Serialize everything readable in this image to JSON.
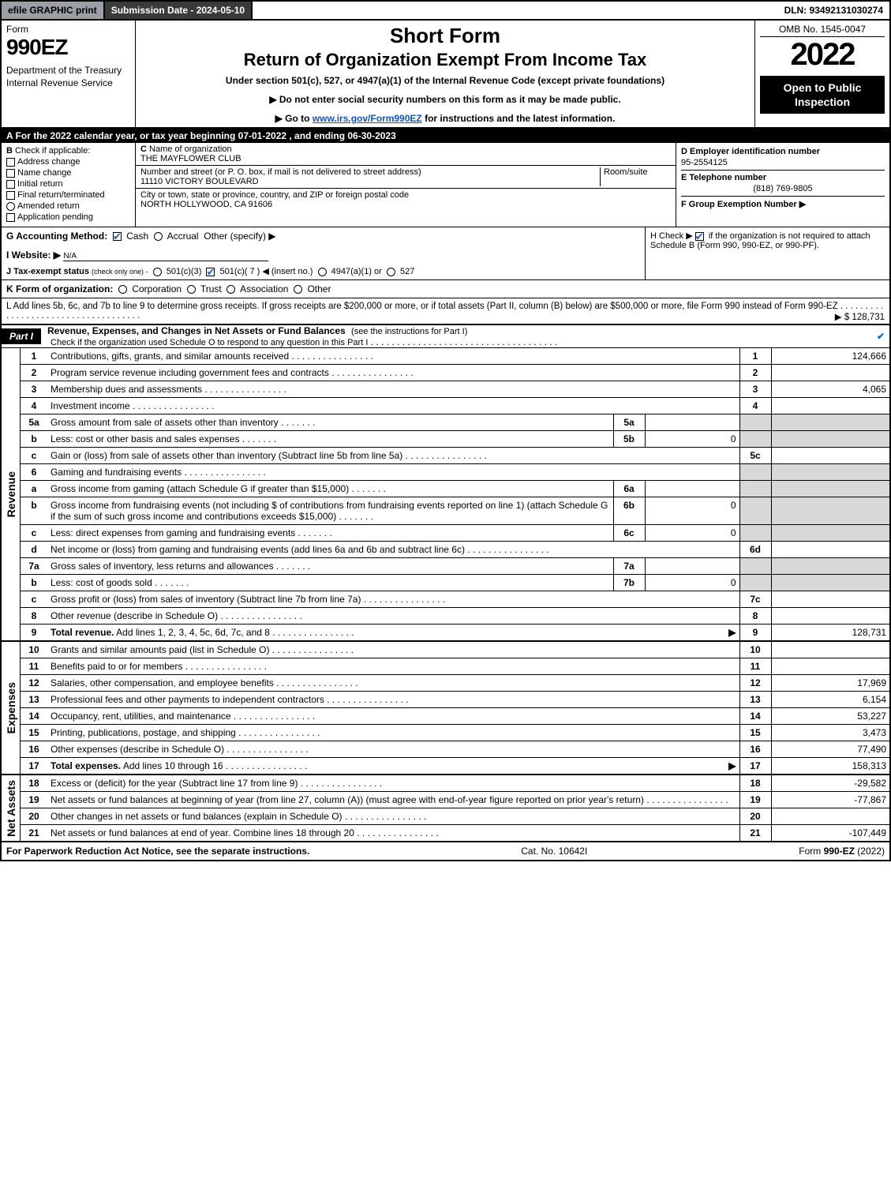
{
  "topbar": {
    "efile": "efile GRAPHIC print",
    "submission": "Submission Date - 2024-05-10",
    "dln": "DLN: 93492131030274"
  },
  "header": {
    "form_word": "Form",
    "form_num": "990EZ",
    "dept": "Department of the Treasury\nInternal Revenue Service",
    "short_form": "Short Form",
    "title": "Return of Organization Exempt From Income Tax",
    "under": "Under section 501(c), 527, or 4947(a)(1) of the Internal Revenue Code (except private foundations)",
    "note1": "▶ Do not enter social security numbers on this form as it may be made public.",
    "note2_pre": "▶ Go to ",
    "note2_link": "www.irs.gov/Form990EZ",
    "note2_post": " for instructions and the latest information.",
    "omb": "OMB No. 1545-0047",
    "year": "2022",
    "badge": "Open to Public Inspection"
  },
  "row_a": "A  For the 2022 calendar year, or tax year beginning 07-01-2022 , and ending 06-30-2023",
  "box_b": {
    "label": "B",
    "caption": "Check if applicable:",
    "addr": "Address change",
    "name": "Name change",
    "init": "Initial return",
    "final": "Final return/terminated",
    "amend": "Amended return",
    "app": "Application pending"
  },
  "box_c": {
    "c_lbl": "C",
    "org_lbl": "Name of organization",
    "org_val": "THE MAYFLOWER CLUB",
    "addr_lbl": "Number and street (or P. O. box, if mail is not delivered to street address)",
    "room_lbl": "Room/suite",
    "addr_val": "11110 VICTORY BOULEVARD",
    "city_lbl": "City or town, state or province, country, and ZIP or foreign postal code",
    "city_val": "NORTH HOLLYWOOD, CA  91606"
  },
  "box_d": {
    "d_lbl": "D Employer identification number",
    "d_val": "95-2554125",
    "e_lbl": "E Telephone number",
    "e_val": "(818) 769-9805",
    "f_lbl": "F Group Exemption Number  ▶"
  },
  "g": {
    "label": "G Accounting Method:",
    "cash": "Cash",
    "accrual": "Accrual",
    "other": "Other (specify) ▶"
  },
  "h": {
    "text_pre": "H  Check ▶ ",
    "text_post": " if the organization is not required to attach Schedule B (Form 990, 990-EZ, or 990-PF)."
  },
  "i": {
    "label": "I Website: ▶",
    "val": "N/A"
  },
  "j": {
    "label": "J Tax-exempt status",
    "small": "(check only one) -",
    "o1": "501(c)(3)",
    "o2": "501(c)( 7 ) ◀ (insert no.)",
    "o3": "4947(a)(1) or",
    "o4": "527"
  },
  "k": {
    "label": "K Form of organization:",
    "corp": "Corporation",
    "trust": "Trust",
    "assoc": "Association",
    "other": "Other"
  },
  "l": {
    "text": "L Add lines 5b, 6c, and 7b to line 9 to determine gross receipts. If gross receipts are $200,000 or more, or if total assets (Part II, column (B) below) are $500,000 or more, file Form 990 instead of Form 990-EZ",
    "val": "▶ $ 128,731"
  },
  "part1": {
    "tag": "Part I",
    "title": "Revenue, Expenses, and Changes in Net Assets or Fund Balances",
    "sub": "(see the instructions for Part I)",
    "subline": "Check if the organization used Schedule O to respond to any question in this Part I"
  },
  "revenue_label": "Revenue",
  "expenses_label": "Expenses",
  "netassets_label": "Net Assets",
  "rows_rev": [
    {
      "n": "1",
      "desc": "Contributions, gifts, grants, and similar amounts received",
      "rn": "1",
      "rv": "124,666"
    },
    {
      "n": "2",
      "desc": "Program service revenue including government fees and contracts",
      "rn": "2",
      "rv": ""
    },
    {
      "n": "3",
      "desc": "Membership dues and assessments",
      "rn": "3",
      "rv": "4,065"
    },
    {
      "n": "4",
      "desc": "Investment income",
      "rn": "4",
      "rv": ""
    },
    {
      "n": "5a",
      "desc": "Gross amount from sale of assets other than inventory",
      "sl": "5a",
      "sv": "",
      "shade": true
    },
    {
      "n": "b",
      "desc": "Less: cost or other basis and sales expenses",
      "sl": "5b",
      "sv": "0",
      "shade": true
    },
    {
      "n": "c",
      "desc": "Gain or (loss) from sale of assets other than inventory (Subtract line 5b from line 5a)",
      "rn": "5c",
      "rv": ""
    },
    {
      "n": "6",
      "desc": "Gaming and fundraising events",
      "shade": true
    },
    {
      "n": "a",
      "desc": "Gross income from gaming (attach Schedule G if greater than $15,000)",
      "sl": "6a",
      "sv": "",
      "shade": true
    },
    {
      "n": "b",
      "desc": "Gross income from fundraising events (not including $                      of contributions from fundraising events reported on line 1) (attach Schedule G if the sum of such gross income and contributions exceeds $15,000)",
      "sl": "6b",
      "sv": "0",
      "shade": true
    },
    {
      "n": "c",
      "desc": "Less: direct expenses from gaming and fundraising events",
      "sl": "6c",
      "sv": "0",
      "shade": true
    },
    {
      "n": "d",
      "desc": "Net income or (loss) from gaming and fundraising events (add lines 6a and 6b and subtract line 6c)",
      "rn": "6d",
      "rv": ""
    },
    {
      "n": "7a",
      "desc": "Gross sales of inventory, less returns and allowances",
      "sl": "7a",
      "sv": "",
      "shade": true
    },
    {
      "n": "b",
      "desc": "Less: cost of goods sold",
      "sl": "7b",
      "sv": "0",
      "shade": true
    },
    {
      "n": "c",
      "desc": "Gross profit or (loss) from sales of inventory (Subtract line 7b from line 7a)",
      "rn": "7c",
      "rv": ""
    },
    {
      "n": "8",
      "desc": "Other revenue (describe in Schedule O)",
      "rn": "8",
      "rv": ""
    },
    {
      "n": "9",
      "desc_bold": "Total revenue.",
      "desc": " Add lines 1, 2, 3, 4, 5c, 6d, 7c, and 8",
      "arrow": true,
      "rn": "9",
      "rv": "128,731"
    }
  ],
  "rows_exp": [
    {
      "n": "10",
      "desc": "Grants and similar amounts paid (list in Schedule O)",
      "rn": "10",
      "rv": ""
    },
    {
      "n": "11",
      "desc": "Benefits paid to or for members",
      "rn": "11",
      "rv": ""
    },
    {
      "n": "12",
      "desc": "Salaries, other compensation, and employee benefits",
      "rn": "12",
      "rv": "17,969"
    },
    {
      "n": "13",
      "desc": "Professional fees and other payments to independent contractors",
      "rn": "13",
      "rv": "6,154"
    },
    {
      "n": "14",
      "desc": "Occupancy, rent, utilities, and maintenance",
      "rn": "14",
      "rv": "53,227"
    },
    {
      "n": "15",
      "desc": "Printing, publications, postage, and shipping",
      "rn": "15",
      "rv": "3,473"
    },
    {
      "n": "16",
      "desc": "Other expenses (describe in Schedule O)",
      "rn": "16",
      "rv": "77,490"
    },
    {
      "n": "17",
      "desc_bold": "Total expenses.",
      "desc": " Add lines 10 through 16",
      "arrow": true,
      "rn": "17",
      "rv": "158,313"
    }
  ],
  "rows_net": [
    {
      "n": "18",
      "desc": "Excess or (deficit) for the year (Subtract line 17 from line 9)",
      "rn": "18",
      "rv": "-29,582"
    },
    {
      "n": "19",
      "desc": "Net assets or fund balances at beginning of year (from line 27, column (A)) (must agree with end-of-year figure reported on prior year's return)",
      "rn": "19",
      "rv": "-77,867",
      "shade_top": true
    },
    {
      "n": "20",
      "desc": "Other changes in net assets or fund balances (explain in Schedule O)",
      "rn": "20",
      "rv": ""
    },
    {
      "n": "21",
      "desc": "Net assets or fund balances at end of year. Combine lines 18 through 20",
      "rn": "21",
      "rv": "-107,449"
    }
  ],
  "footer": {
    "left": "For Paperwork Reduction Act Notice, see the separate instructions.",
    "mid": "Cat. No. 10642I",
    "right_pre": "Form ",
    "right_bold": "990-EZ",
    "right_post": " (2022)"
  },
  "colors": {
    "shade": "#d8d8d8",
    "check_blue": "#1a5fd6",
    "top_gray": "#9aa0a6",
    "top_dark": "#3a3a3a"
  }
}
